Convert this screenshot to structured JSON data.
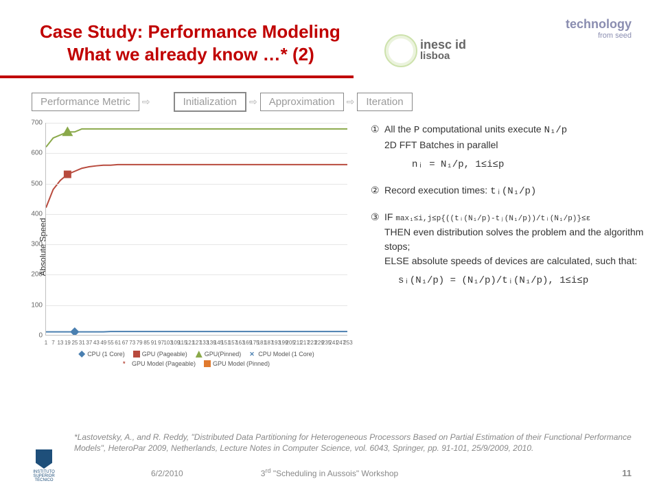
{
  "title": {
    "line1": "Case Study: Performance Modeling",
    "line2": "What we already know …* (2)"
  },
  "top_right": {
    "label": "technology",
    "sub": "from seed"
  },
  "logo": {
    "name": "inesc id",
    "city": "lisboa"
  },
  "flow": {
    "boxes": [
      "Performance Metric",
      "Initialization",
      "Approximation",
      "Iteration"
    ],
    "highlighted_index": 1
  },
  "steps": {
    "s1": {
      "num": "①",
      "l1_pre": "All the ",
      "l1_p": "P",
      "l1_post": " computational units execute ",
      "l1_expr": "N₁/p",
      "l2": "2D FFT Batches in parallel",
      "l3_pre": "nᵢ = N₁/p,  1≤i≤p"
    },
    "s2": {
      "num": "②",
      "text_pre": "Record execution times: ",
      "expr": "tᵢ(N₁/p)"
    },
    "s3": {
      "num": "③",
      "if_pre": "IF ",
      "if_expr": "max₁≤i,j≤p{((tᵢ(N₁/p)-tⱼ(N₁/p))/tᵢ(N₁/p)}≤ε",
      "then": "THEN even distribution solves the problem and the algorithm stops;",
      "else": "ELSE absolute speeds of devices are calculated, such that:",
      "calc": "sᵢ(N₁/p) = (N₁/p)/tᵢ(N₁/p),  1≤i≤p"
    }
  },
  "chart": {
    "ylabel": "Absolute Speed",
    "ylim": [
      0,
      700
    ],
    "ytick_step": 100,
    "x_categories": [
      "1",
      "7",
      "13",
      "19",
      "25",
      "31",
      "37",
      "43",
      "49",
      "55",
      "61",
      "67",
      "73",
      "79",
      "85",
      "91",
      "97",
      "103",
      "109",
      "115",
      "121",
      "127",
      "133",
      "139",
      "145",
      "151",
      "157",
      "163",
      "169",
      "175",
      "181",
      "187",
      "193",
      "199",
      "205",
      "211",
      "217",
      "223",
      "229",
      "235",
      "241",
      "247",
      "253"
    ],
    "series": {
      "cpu1": {
        "label": "CPU (1 Core)",
        "color": "#4a7fb0",
        "marker": "diamond"
      },
      "gpuPage": {
        "label": "GPU (Pageable)",
        "color": "#b84a3d",
        "marker": "square"
      },
      "gpuPin": {
        "label": "GPU(Pinned)",
        "color": "#8aa94a",
        "marker": "triangle"
      },
      "cpuModel": {
        "label": "CPU Model (1 Core)",
        "color": "#4a7fb0",
        "marker": "x"
      },
      "gpuPageModel": {
        "label": "GPU Model (Pageable)",
        "color": "#b84a3d",
        "marker": "star"
      },
      "gpuPinModel": {
        "label": "GPU Model (Pinned)",
        "color": "#e07a2e",
        "marker": "square"
      }
    },
    "gpuPin_values": [
      620,
      650,
      660,
      670,
      670,
      680,
      680,
      680,
      680,
      680,
      680,
      680,
      680,
      680,
      680,
      680,
      680,
      680,
      680,
      680,
      680,
      680,
      680,
      680,
      680,
      680,
      680,
      680,
      680,
      680,
      680,
      680,
      680,
      680,
      680,
      680,
      680,
      680,
      680,
      680,
      680,
      680,
      680
    ],
    "gpuPage_values": [
      420,
      480,
      510,
      530,
      540,
      550,
      555,
      558,
      560,
      560,
      562,
      562,
      562,
      562,
      562,
      562,
      562,
      562,
      562,
      562,
      562,
      562,
      562,
      562,
      562,
      562,
      562,
      562,
      562,
      562,
      562,
      562,
      562,
      562,
      562,
      562,
      562,
      562,
      562,
      562,
      562,
      562,
      562
    ],
    "cpu1_values": [
      10,
      10,
      10,
      10,
      10,
      10,
      10,
      10,
      10,
      11,
      11,
      11,
      11,
      11,
      11,
      11,
      11,
      11,
      11,
      11,
      11,
      11,
      11,
      11,
      11,
      11,
      11,
      11,
      11,
      11,
      11,
      11,
      11,
      11,
      11,
      11,
      11,
      11,
      11,
      11,
      11,
      11,
      11
    ],
    "gpuPin_marker_idx": 3,
    "gpuPage_marker_idx": 3,
    "cpu_marker_idx": 4
  },
  "citation": "*Lastovetsky, A., and R. Reddy, \"Distributed Data Partitioning for Heterogeneous Processors Based on Partial Estimation of their Functional Performance Models\", HeteroPar 2009, Netherlands, Lecture Notes in Computer Science, vol. 6043, Springer, pp. 91-101, 25/9/2009, 2010.",
  "footer": {
    "date": "6/2/2010",
    "center": "3rd \"Scheduling in Aussois\" Workshop",
    "page": "11",
    "inst": "INSTITUTO SUPERIOR TÉCNICO"
  }
}
